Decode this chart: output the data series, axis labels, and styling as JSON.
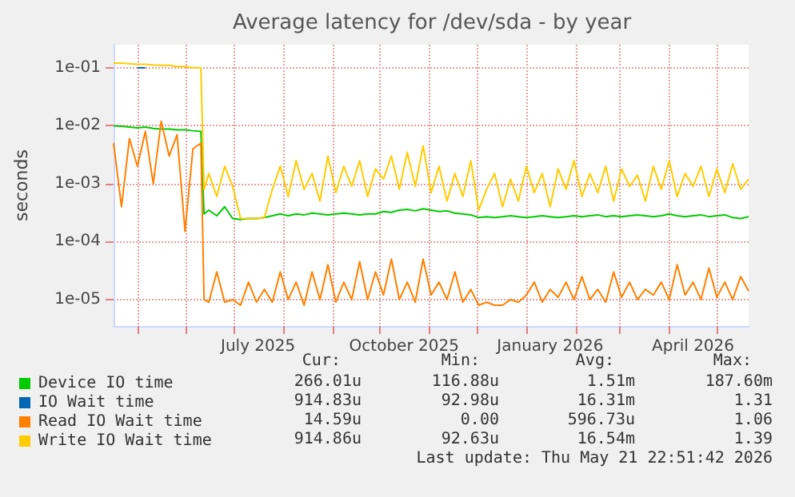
{
  "chart_data": {
    "type": "line",
    "title": "Average latency for /dev/sda - by year",
    "ylabel": "seconds",
    "log": "y",
    "grid": true,
    "legend": "bottom",
    "xlim": [
      "2025-04-16",
      "2026-05-21"
    ],
    "xticks": [
      {
        "value": "2025-05-01",
        "label": null
      },
      {
        "value": "2025-06-01",
        "label": null
      },
      {
        "value": "2025-07-01",
        "label": null
      },
      {
        "value": "2025-07-16",
        "label": "July 2025"
      },
      {
        "value": "2025-08-01",
        "label": null
      },
      {
        "value": "2025-09-01",
        "label": null
      },
      {
        "value": "2025-10-01",
        "label": null
      },
      {
        "value": "2025-10-16",
        "label": "October 2025"
      },
      {
        "value": "2025-11-01",
        "label": null
      },
      {
        "value": "2025-12-01",
        "label": null
      },
      {
        "value": "2026-01-01",
        "label": null
      },
      {
        "value": "2026-01-16",
        "label": "January 2026"
      },
      {
        "value": "2026-02-01",
        "label": null
      },
      {
        "value": "2026-03-01",
        "label": null
      },
      {
        "value": "2026-04-01",
        "label": null
      },
      {
        "value": "2026-04-16",
        "label": "April 2026"
      },
      {
        "value": "2026-05-01",
        "label": null
      }
    ],
    "ylim": [
      3.5e-06,
      0.25
    ],
    "yticks": [
      {
        "value": 1e-05,
        "label": "1e-05"
      },
      {
        "value": 0.0001,
        "label": "1e-04"
      },
      {
        "value": 0.001,
        "label": "1e-03"
      },
      {
        "value": 0.01,
        "label": "1e-02"
      },
      {
        "value": 0.1,
        "label": "1e-01"
      }
    ],
    "x": [
      "2025-04-16",
      "2025-04-21",
      "2025-04-26",
      "2025-05-01",
      "2025-05-06",
      "2025-05-11",
      "2025-05-16",
      "2025-05-21",
      "2025-05-26",
      "2025-05-31",
      "2025-06-05",
      "2025-06-10",
      "2025-06-12",
      "2025-06-15",
      "2025-06-20",
      "2025-06-25",
      "2025-06-30",
      "2025-07-05",
      "2025-07-10",
      "2025-07-15",
      "2025-07-20",
      "2025-07-25",
      "2025-07-30",
      "2025-08-04",
      "2025-08-09",
      "2025-08-14",
      "2025-08-19",
      "2025-08-24",
      "2025-08-29",
      "2025-09-03",
      "2025-09-08",
      "2025-09-13",
      "2025-09-18",
      "2025-09-23",
      "2025-09-28",
      "2025-10-03",
      "2025-10-08",
      "2025-10-13",
      "2025-10-18",
      "2025-10-23",
      "2025-10-28",
      "2025-11-02",
      "2025-11-07",
      "2025-11-12",
      "2025-11-17",
      "2025-11-22",
      "2025-11-27",
      "2025-12-02",
      "2025-12-07",
      "2025-12-12",
      "2025-12-17",
      "2025-12-22",
      "2025-12-27",
      "2026-01-01",
      "2026-01-06",
      "2026-01-11",
      "2026-01-16",
      "2026-01-21",
      "2026-01-26",
      "2026-01-31",
      "2026-02-05",
      "2026-02-10",
      "2026-02-15",
      "2026-02-20",
      "2026-02-25",
      "2026-03-02",
      "2026-03-07",
      "2026-03-12",
      "2026-03-17",
      "2026-03-22",
      "2026-03-27",
      "2026-04-01",
      "2026-04-06",
      "2026-04-11",
      "2026-04-16",
      "2026-04-21",
      "2026-04-26",
      "2026-05-01",
      "2026-05-06",
      "2026-05-11",
      "2026-05-16",
      "2026-05-21"
    ],
    "series": [
      {
        "name": "Device IO time",
        "color": "#00cc00",
        "values": [
          0.01,
          0.0098,
          0.0095,
          0.0092,
          0.0095,
          0.009,
          0.0088,
          0.0088,
          0.0085,
          0.0085,
          0.0082,
          0.008,
          0.0003,
          0.00035,
          0.00028,
          0.0004,
          0.00025,
          0.00024,
          0.00025,
          0.00025,
          0.00026,
          0.00028,
          0.0003,
          0.00028,
          0.0003,
          0.00029,
          0.00031,
          0.0003,
          0.00029,
          0.0003,
          0.00031,
          0.0003,
          0.00029,
          0.0003,
          0.0003,
          0.00033,
          0.00032,
          0.00035,
          0.00036,
          0.00034,
          0.00037,
          0.00035,
          0.00033,
          0.00034,
          0.00031,
          0.0003,
          0.00029,
          0.00026,
          0.00027,
          0.00026,
          0.00027,
          0.00028,
          0.00027,
          0.00026,
          0.00027,
          0.00028,
          0.00027,
          0.00026,
          0.00027,
          0.00028,
          0.00027,
          0.00028,
          0.00029,
          0.00027,
          0.00028,
          0.00027,
          0.00028,
          0.00029,
          0.00028,
          0.00027,
          0.00028,
          0.0003,
          0.00028,
          0.00027,
          0.00028,
          0.00029,
          0.00027,
          0.00028,
          0.00029,
          0.00026,
          0.00025,
          0.00027
        ]
      },
      {
        "name": "IO Wait time",
        "color": "#0066b3",
        "values": [
          null,
          null,
          null,
          0.1,
          0.1,
          null,
          null,
          null,
          null,
          null,
          null,
          null,
          null,
          null,
          null,
          null,
          null,
          null,
          null,
          null,
          null,
          null,
          null,
          null,
          null,
          null,
          null,
          null,
          null,
          null,
          null,
          null,
          null,
          null,
          null,
          null,
          null,
          null,
          null,
          null,
          null,
          null,
          null,
          null,
          null,
          null,
          null,
          null,
          null,
          null,
          null,
          null,
          null,
          null,
          null,
          null,
          null,
          null,
          null,
          null,
          null,
          null,
          null,
          null,
          null,
          null,
          null,
          null,
          null,
          null,
          null,
          null,
          null,
          null,
          null,
          null,
          null,
          null,
          null,
          null,
          null,
          null
        ]
      },
      {
        "name": "Read IO Wait time",
        "color": "#ff8000",
        "values": [
          0.005,
          0.0004,
          0.006,
          0.002,
          0.008,
          0.001,
          0.012,
          0.003,
          0.007,
          0.00015,
          0.004,
          0.005,
          1e-05,
          9e-06,
          3e-05,
          9e-06,
          1e-05,
          8e-06,
          2e-05,
          9e-06,
          1.5e-05,
          9e-06,
          3e-05,
          1e-05,
          2e-05,
          8e-06,
          3e-05,
          1e-05,
          4e-05,
          9e-06,
          2e-05,
          1e-05,
          4.5e-05,
          1e-05,
          3e-05,
          1.2e-05,
          5e-05,
          1e-05,
          2e-05,
          9e-06,
          5e-05,
          1.2e-05,
          2e-05,
          1e-05,
          3e-05,
          9e-06,
          1.5e-05,
          8e-06,
          9e-06,
          8e-06,
          8e-06,
          1e-05,
          9e-06,
          1.2e-05,
          2e-05,
          9e-06,
          1.5e-05,
          1.1e-05,
          2e-05,
          1e-05,
          2.5e-05,
          1e-05,
          1.5e-05,
          9e-06,
          3e-05,
          1.1e-05,
          2e-05,
          1e-05,
          1.5e-05,
          1.2e-05,
          2e-05,
          1e-05,
          4e-05,
          1.2e-05,
          2e-05,
          1e-05,
          3.5e-05,
          1.1e-05,
          2e-05,
          1e-05,
          2.5e-05,
          1.4e-05
        ]
      },
      {
        "name": "Write IO Wait time",
        "color": "#ffcc00",
        "values": [
          0.12,
          0.12,
          0.118,
          0.115,
          0.115,
          0.112,
          0.11,
          0.11,
          0.105,
          0.105,
          0.1,
          0.1,
          0.0008,
          0.0015,
          0.0006,
          0.002,
          0.0009,
          0.00025,
          0.00025,
          0.00025,
          0.00026,
          0.0008,
          0.002,
          0.0006,
          0.0025,
          0.0008,
          0.0015,
          0.0005,
          0.003,
          0.0007,
          0.002,
          0.0009,
          0.0025,
          0.0006,
          0.0018,
          0.0012,
          0.003,
          0.0008,
          0.0035,
          0.0009,
          0.0045,
          0.0007,
          0.002,
          0.0005,
          0.0015,
          0.0006,
          0.0025,
          0.00035,
          0.0008,
          0.0015,
          0.0004,
          0.0012,
          0.0005,
          0.002,
          0.0007,
          0.0015,
          0.0004,
          0.0018,
          0.0008,
          0.0025,
          0.0006,
          0.0015,
          0.0007,
          0.002,
          0.0005,
          0.0018,
          0.0009,
          0.0014,
          0.0005,
          0.002,
          0.0008,
          0.0025,
          0.0006,
          0.0015,
          0.0009,
          0.002,
          0.0006,
          0.0018,
          0.0007,
          0.0022,
          0.0008,
          0.0012
        ]
      }
    ],
    "annotations": [
      "Cur:",
      "Min:",
      "Avg:",
      "Max:",
      "266.01u",
      "116.88u",
      "1.51m",
      "187.60m",
      "914.83u",
      "92.98u",
      "16.31m",
      "1.31",
      "14.59u",
      "0.00",
      "596.73u",
      "1.06",
      "914.86u",
      "92.63u",
      "16.54m",
      "1.39",
      "Last update: Thu May 21 22:51:42 2026"
    ]
  }
}
